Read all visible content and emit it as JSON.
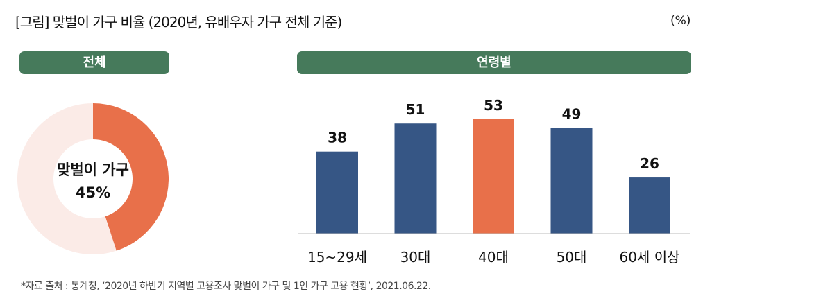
{
  "title": "[그림] 맞벌이 가구 비율 (2020년, 유배우자 가구 전체 기준)",
  "unit": "(%)",
  "panels": {
    "overall": "전체",
    "by_age": "연령별"
  },
  "source": "*자료 출처 : 통계청, ‘2020년 하반기 지역별 고용조사 맞벌이 가구 및 1인 가구 고용 현황’, 2021.06.22.",
  "colors": {
    "green": "#467a5b",
    "blue": "#365685",
    "orange": "#e8704a",
    "pale": "#fbebe7"
  },
  "chart_data": [
    {
      "type": "pie",
      "title": "전체",
      "center_label": "맞벌이 가구",
      "center_value": "45%",
      "values": [
        45,
        55
      ],
      "labels": [
        "맞벌이 가구",
        ""
      ]
    },
    {
      "type": "bar",
      "title": "연령별",
      "categories": [
        "15~29세",
        "30대",
        "40대",
        "50대",
        "60세 이상"
      ],
      "values": [
        38,
        51,
        53,
        49,
        26
      ],
      "highlight": "40대",
      "ylim": [
        0,
        60
      ]
    }
  ]
}
